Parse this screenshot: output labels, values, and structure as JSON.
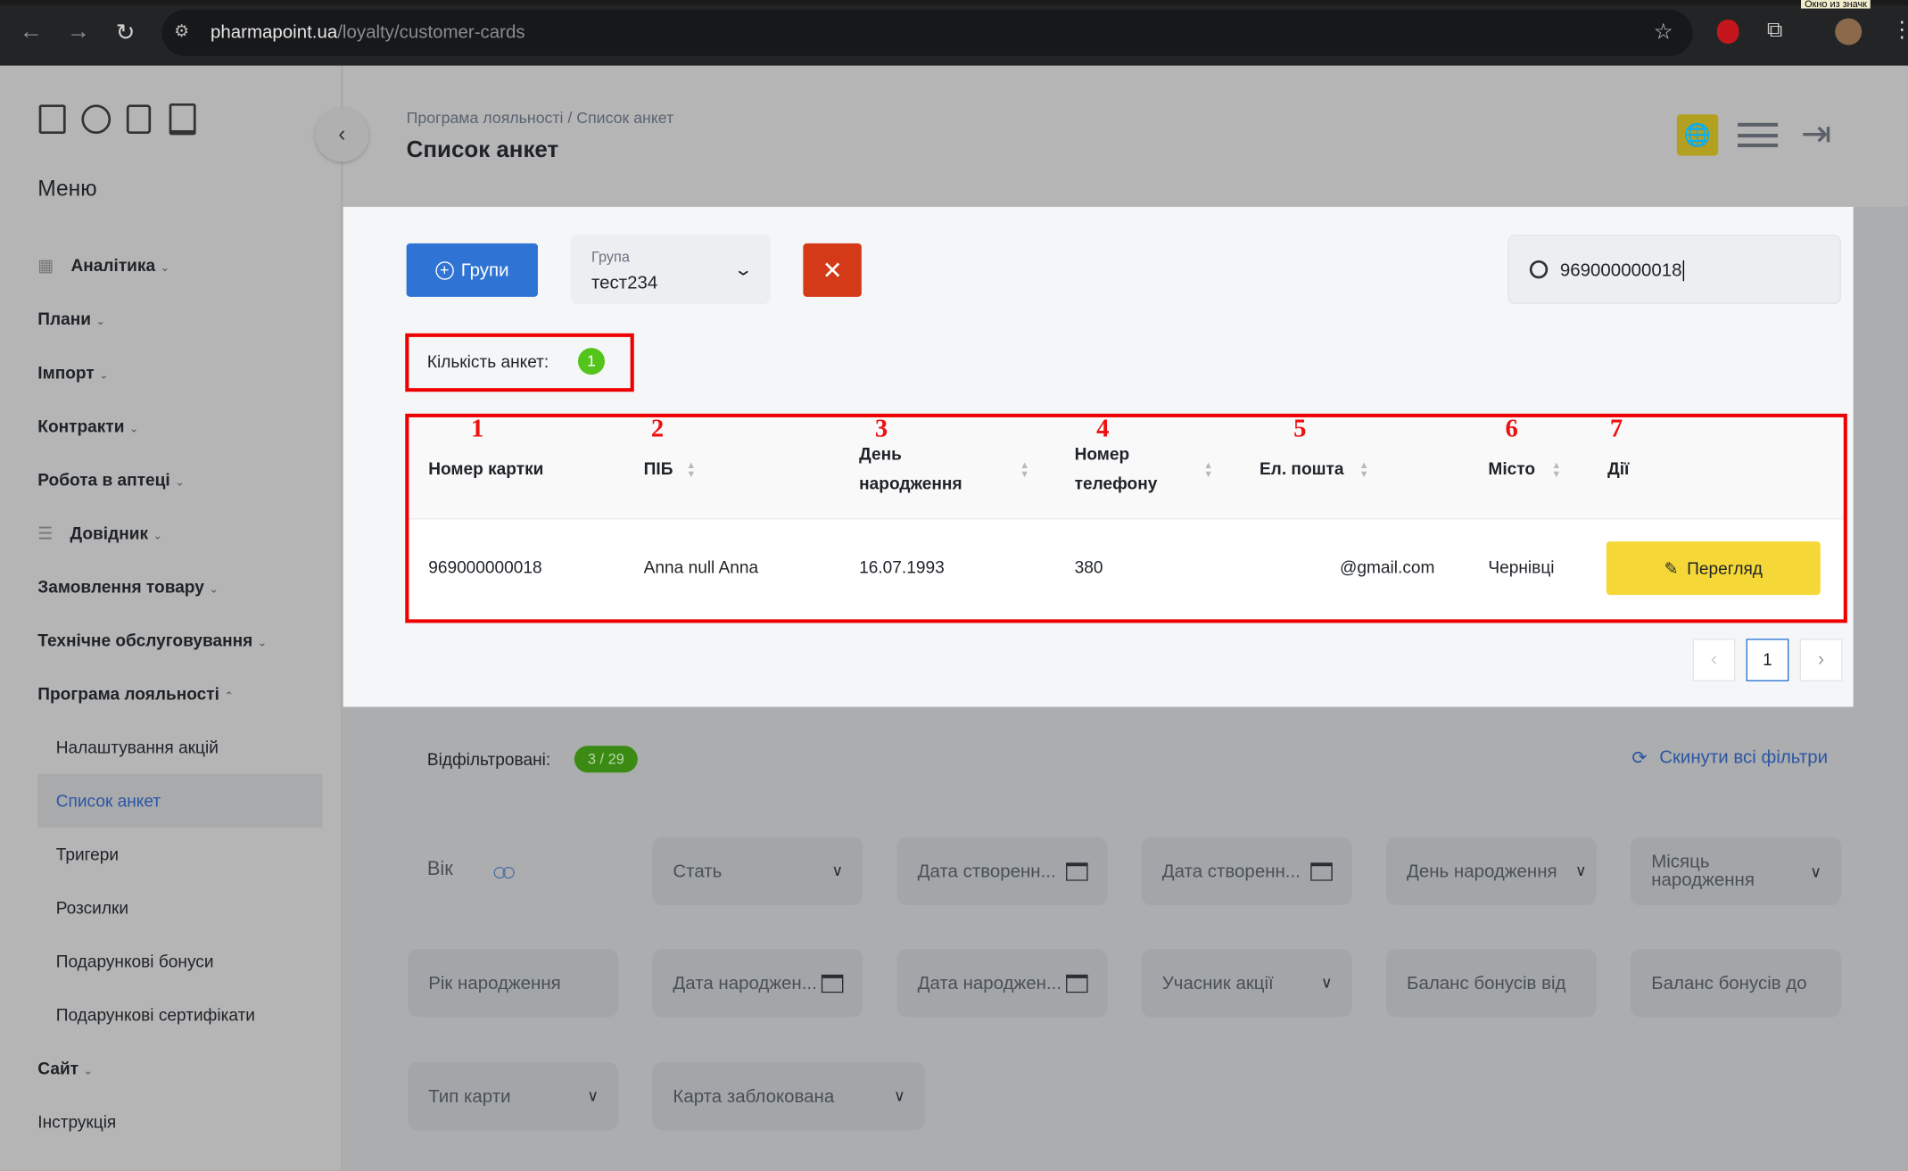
{
  "browser": {
    "url_domain": "pharmapoint.ua",
    "url_path": "/loyalty/customer-cards",
    "corner_tooltip": "Окно из значк"
  },
  "sidebar": {
    "menu_title": "Меню",
    "items": [
      {
        "label": "Аналітика",
        "icon": "grid-icon"
      },
      {
        "label": "Плани"
      },
      {
        "label": "Імпорт"
      },
      {
        "label": "Контракти"
      },
      {
        "label": "Робота в аптеці"
      },
      {
        "label": "Довідник",
        "icon": "list-icon"
      },
      {
        "label": "Замовлення товару"
      },
      {
        "label": "Технічне обслуговування"
      },
      {
        "label": "Програма лояльності",
        "expanded": true
      }
    ],
    "subitems": [
      {
        "label": "Налаштування акцій"
      },
      {
        "label": "Список анкет",
        "active": true
      },
      {
        "label": "Тригери"
      },
      {
        "label": "Розсилки"
      },
      {
        "label": "Подарункові бонуси"
      },
      {
        "label": "Подарункові сертифікати"
      }
    ],
    "bottom_items": [
      {
        "label": "Сайт"
      },
      {
        "label": "Інструкція"
      }
    ]
  },
  "header": {
    "breadcrumb": "Програма лояльності / Список анкет",
    "title": "Список анкет"
  },
  "toolbar": {
    "groups_button": "Групи",
    "group_select_label": "Група",
    "group_select_value": "тест234",
    "clear_icon": "close-icon",
    "search_value": "969000000018"
  },
  "count": {
    "label": "Кількість анкет:",
    "value": "1"
  },
  "table": {
    "annotations": [
      "1",
      "2",
      "3",
      "4",
      "5",
      "6",
      "7"
    ],
    "columns": [
      {
        "label": "Номер картки"
      },
      {
        "label": "ПІБ"
      },
      {
        "label": "День народження"
      },
      {
        "label": "Номер телефону"
      },
      {
        "label": "Ел. пошта"
      },
      {
        "label": "Місто"
      },
      {
        "label": "Дії"
      }
    ],
    "rows": [
      {
        "card": "969000000018",
        "name": "Anna null Anna",
        "birthday": "16.07.1993",
        "phone": "380",
        "email": "@gmail.com",
        "city": "Чернівці",
        "action": "Перегляд"
      }
    ]
  },
  "pagination": {
    "current": "1"
  },
  "filters": {
    "filtered_label": "Відфільтровані:",
    "filtered_value": "3 / 29",
    "reset_label": "Скинути всі фільтри",
    "age_label": "Вік",
    "fields": [
      "Стать",
      "Дата створенн...",
      "Дата створенн...",
      "День народження",
      "Місяць народження",
      "Рік народження",
      "Дата народжен...",
      "Дата народжен...",
      "Учасник акції",
      "Баланс бонусів від",
      "Баланс бонусів до",
      "Тип карти",
      "Карта заблокована"
    ]
  },
  "colors": {
    "primary": "#2f74d4",
    "danger": "#d43a17",
    "view_button": "#f5d838",
    "badge_green": "#52c41a",
    "annotation_red": "#ee0000"
  }
}
